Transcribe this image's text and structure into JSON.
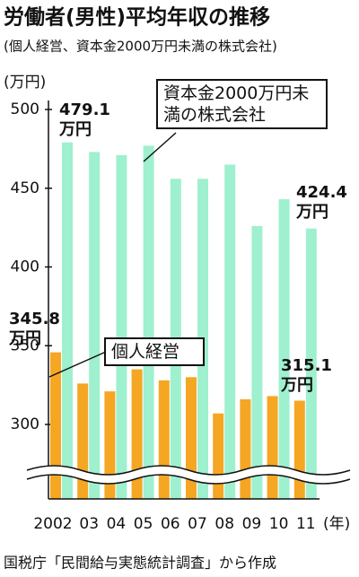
{
  "chart_data": {
    "type": "bar",
    "title": "労働者(男性)平均年収の推移",
    "subtitle": "(個人経営、資本金2000万円未満の株式会社)",
    "y_unit": "(万円)",
    "x_unit": "(年)",
    "value_unit": "万円",
    "source": "国税庁「民間給与実態統計調査」から作成",
    "categories": [
      "2002",
      "03",
      "04",
      "05",
      "06",
      "07",
      "08",
      "09",
      "10",
      "11"
    ],
    "series": [
      {
        "name": "個人経営",
        "color": "#f5a623",
        "values": [
          345.8,
          326,
          321,
          335,
          328,
          330,
          307,
          316,
          318,
          315.1
        ]
      },
      {
        "name": "資本金2000万円未満の株式会社",
        "color": "#9ff0cf",
        "values": [
          479.1,
          473,
          471,
          477,
          456,
          456,
          465,
          426,
          443,
          424.4
        ]
      }
    ],
    "ylim": [
      300,
      500
    ],
    "yticks": [
      300,
      350,
      400,
      450,
      500
    ]
  }
}
